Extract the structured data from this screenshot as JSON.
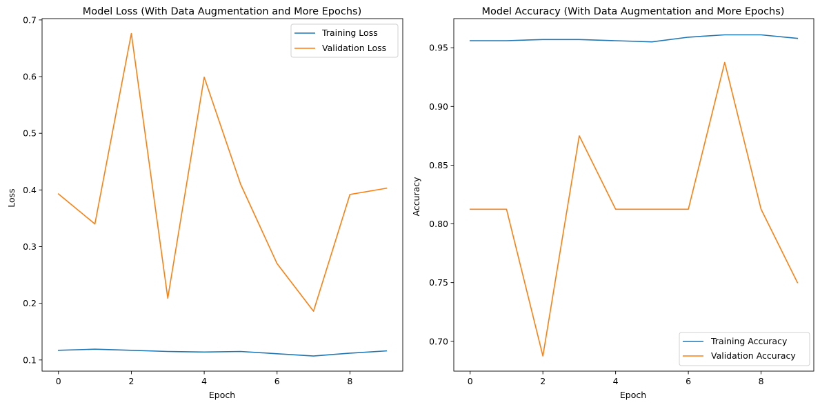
{
  "chart_data": [
    {
      "type": "line",
      "title": "Model Loss (With Data Augmentation and More Epochs)",
      "xlabel": "Epoch",
      "ylabel": "Loss",
      "xlim": [
        -0.45,
        9.45
      ],
      "ylim": [
        0.0803,
        0.7023
      ],
      "xticks": [
        0,
        2,
        4,
        6,
        8
      ],
      "xtick_labels": [
        "0",
        "2",
        "4",
        "6",
        "8"
      ],
      "yticks": [
        0.1,
        0.2,
        0.3,
        0.4,
        0.5,
        0.6,
        0.7
      ],
      "ytick_labels": [
        "0.1",
        "0.2",
        "0.3",
        "0.4",
        "0.5",
        "0.6",
        "0.7"
      ],
      "legend_position": "upper-right",
      "x": [
        0,
        1,
        2,
        3,
        4,
        5,
        6,
        7,
        8,
        9
      ],
      "series": [
        {
          "name": "Training Loss",
          "color": "#1f77b4",
          "values": [
            0.117,
            0.119,
            0.117,
            0.115,
            0.114,
            0.115,
            0.111,
            0.107,
            0.112,
            0.116
          ]
        },
        {
          "name": "Validation Loss",
          "color": "#ff7f0e",
          "values": [
            0.393,
            0.34,
            0.676,
            0.209,
            0.599,
            0.41,
            0.27,
            0.186,
            0.392,
            0.403
          ]
        }
      ]
    },
    {
      "type": "line",
      "title": "Model Accuracy (With Data Augmentation and More Epochs)",
      "xlabel": "Epoch",
      "ylabel": "Accuracy",
      "xlim": [
        -0.45,
        9.45
      ],
      "ylim": [
        0.6746,
        0.9748
      ],
      "xticks": [
        0,
        2,
        4,
        6,
        8
      ],
      "xtick_labels": [
        "0",
        "2",
        "4",
        "6",
        "8"
      ],
      "yticks": [
        0.7,
        0.75,
        0.8,
        0.85,
        0.9,
        0.95
      ],
      "ytick_labels": [
        "0.70",
        "0.75",
        "0.80",
        "0.85",
        "0.90",
        "0.95"
      ],
      "legend_position": "lower-right",
      "x": [
        0,
        1,
        2,
        3,
        4,
        5,
        6,
        7,
        8,
        9
      ],
      "series": [
        {
          "name": "Training Accuracy",
          "color": "#1f77b4",
          "values": [
            0.956,
            0.956,
            0.957,
            0.957,
            0.956,
            0.955,
            0.959,
            0.961,
            0.961,
            0.958
          ]
        },
        {
          "name": "Validation Accuracy",
          "color": "#ff7f0e",
          "values": [
            0.8125,
            0.8125,
            0.6875,
            0.875,
            0.8125,
            0.8125,
            0.8125,
            0.9375,
            0.8125,
            0.75
          ]
        }
      ]
    }
  ]
}
